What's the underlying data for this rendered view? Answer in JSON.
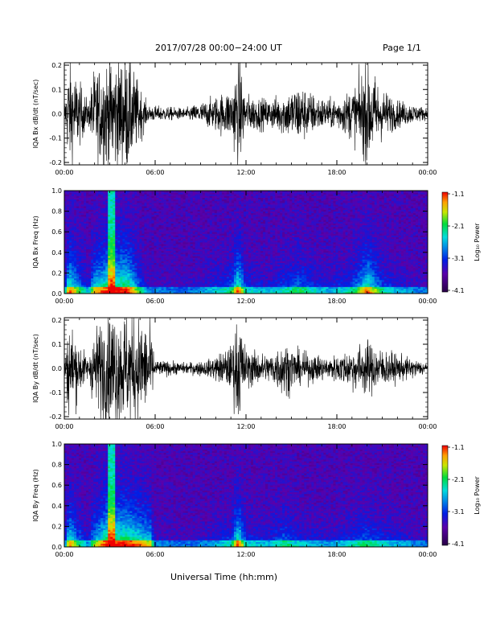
{
  "header": {
    "title": "2017/07/28   00:00−24:00 UT",
    "page": "Page 1/1"
  },
  "x_axis_label": "Universal Time (hh:mm)",
  "colorbar": {
    "title": "Log₁₀ Power",
    "ticks": [
      "-1.1",
      "-2.1",
      "-3.1",
      "-4.1"
    ]
  },
  "chart_data": [
    {
      "type": "line",
      "ylabel": "IQA Bx dB/dt (nT/sec)",
      "xlim": [
        0,
        24
      ],
      "ylim": [
        -0.21,
        0.21
      ],
      "x_ticks": [
        "00:00",
        "06:00",
        "12:00",
        "18:00",
        "00:00"
      ],
      "y_ticks": [
        "0.2",
        "0.1",
        "0.0",
        "-0.1",
        "-0.2"
      ],
      "envelope": {
        "x": [
          0,
          0.3,
          1.6,
          1.9,
          2.8,
          3.0,
          3.5,
          4.2,
          5.5,
          8.0,
          9.5,
          11.0,
          11.5,
          12.0,
          13.5,
          15.0,
          15.5,
          16.5,
          17.5,
          18.5,
          19.3,
          20.0,
          21.0,
          22.0,
          24.0
        ],
        "amp": [
          0.02,
          0.2,
          0.04,
          0.15,
          0.2,
          0.21,
          0.21,
          0.21,
          0.03,
          0.02,
          0.05,
          0.09,
          0.2,
          0.07,
          0.05,
          0.09,
          0.11,
          0.07,
          0.05,
          0.07,
          0.11,
          0.19,
          0.09,
          0.05,
          0.02
        ]
      }
    },
    {
      "type": "heatmap",
      "ylabel": "IQA Bx Freq (Hz)",
      "xlim": [
        0,
        24
      ],
      "ylim": [
        0,
        1.0
      ],
      "x_ticks": [
        "00:00",
        "06:00",
        "12:00",
        "18:00",
        "00:00"
      ],
      "y_ticks": [
        "1.0",
        "0.8",
        "0.6",
        "0.4",
        "0.2",
        "0.0"
      ],
      "zlim": [
        -4.1,
        -1.1
      ]
    },
    {
      "type": "line",
      "ylabel": "IQA By dB/dt (nT/sec)",
      "xlim": [
        0,
        24
      ],
      "ylim": [
        -0.21,
        0.21
      ],
      "x_ticks": [
        "00:00",
        "06:00",
        "12:00",
        "18:00",
        "00:00"
      ],
      "y_ticks": [
        "0.2",
        "0.1",
        "0.0",
        "-0.1",
        "-0.2"
      ],
      "envelope": {
        "x": [
          0,
          0.3,
          1.6,
          1.9,
          2.8,
          3.0,
          3.5,
          4.2,
          5.7,
          6.0,
          8.0,
          9.5,
          11.0,
          11.5,
          12.0,
          13.5,
          14.5,
          15.5,
          16.5,
          17.5,
          18.5,
          19.3,
          20.0,
          21.0,
          22.0,
          24.0
        ],
        "amp": [
          0.02,
          0.18,
          0.03,
          0.13,
          0.21,
          0.21,
          0.21,
          0.21,
          0.15,
          0.03,
          0.02,
          0.03,
          0.08,
          0.2,
          0.07,
          0.05,
          0.1,
          0.06,
          0.05,
          0.04,
          0.06,
          0.08,
          0.1,
          0.07,
          0.05,
          0.02
        ]
      }
    },
    {
      "type": "heatmap",
      "ylabel": "IQA By Freq (Hz)",
      "xlim": [
        0,
        24
      ],
      "ylim": [
        0,
        1.0
      ],
      "x_ticks": [
        "00:00",
        "06:00",
        "12:00",
        "18:00",
        "00:00"
      ],
      "y_ticks": [
        "1.0",
        "0.8",
        "0.6",
        "0.4",
        "0.2",
        "0.0"
      ],
      "zlim": [
        -4.1,
        -1.1
      ]
    }
  ]
}
